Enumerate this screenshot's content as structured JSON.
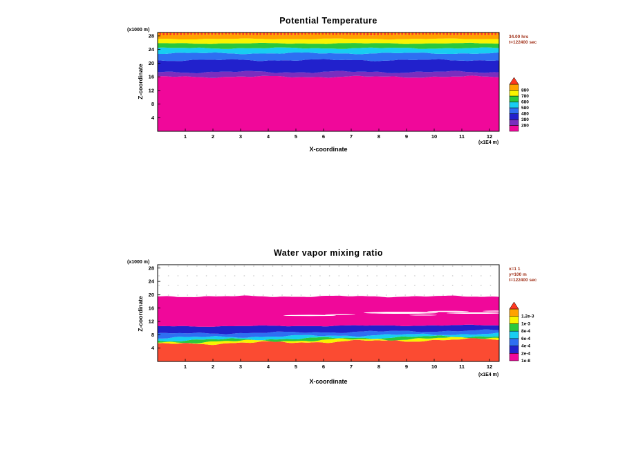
{
  "palette": {
    "magenta": "#F0089A",
    "purple": "#7A2EBE",
    "navy": "#2121CC",
    "blue": "#2E6FF2",
    "cyan": "#18CDF2",
    "green": "#2AC83C",
    "yellow": "#F8F400",
    "orange": "#FFA200",
    "red": "#FF3820",
    "redorange": "#FB4B32",
    "white": "#FFFFFF"
  },
  "chart_data": [
    {
      "type": "filled-contour",
      "title": "Potential Temperature",
      "xlabel": "X-coordinate",
      "ylabel": "Z-coordinate",
      "x_unit_label": "(x1E4 m)",
      "y_unit_label": "(x1000 m)",
      "xlim": [
        0,
        12.35
      ],
      "ylim": [
        0,
        29
      ],
      "x_ticks": [
        "1",
        "2",
        "3",
        "4",
        "5",
        "6",
        "7",
        "8",
        "9",
        "10",
        "11",
        "12"
      ],
      "y_ticks": [
        "4",
        "8",
        "12",
        "16",
        "20",
        "24",
        "28"
      ],
      "annotations": [
        "34.00 hrs",
        "t=122400 sec"
      ],
      "legend": {
        "labels": [
          "880",
          "780",
          "680",
          "580",
          "480",
          "380",
          "280"
        ],
        "colors": [
          "magenta",
          "purple",
          "navy",
          "blue",
          "cyan",
          "green",
          "yellow",
          "orange"
        ],
        "arrow": "red"
      },
      "region_colors": [
        "magenta",
        "purple",
        "navy",
        "blue",
        "cyan",
        "green",
        "yellow",
        "orange",
        "stripes"
      ],
      "edges": [
        {
          "z": 16.0,
          "amp": 0.35
        },
        {
          "z": 17.4,
          "amp": 0.4
        },
        {
          "z": 20.9,
          "amp": 0.35
        },
        {
          "z": 22.9,
          "amp": 0.3
        },
        {
          "z": 24.4,
          "amp": 0.25
        },
        {
          "z": 25.8,
          "amp": 0.2
        },
        {
          "z": 27.1,
          "amp": 0.18
        },
        {
          "z": 28.3,
          "amp": 0.14
        }
      ],
      "dots": false,
      "holes": []
    },
    {
      "type": "filled-contour",
      "title": "Water vapor mixing ratio",
      "xlabel": "X-coordinate",
      "ylabel": "Z-coordinate",
      "x_unit_label": "(x1E4 m)",
      "y_unit_label": "(x1000 m)",
      "xlim": [
        0,
        12.35
      ],
      "ylim": [
        0,
        29
      ],
      "x_ticks": [
        "1",
        "2",
        "3",
        "4",
        "5",
        "6",
        "7",
        "8",
        "9",
        "10",
        "11",
        "12"
      ],
      "y_ticks": [
        "4",
        "8",
        "12",
        "16",
        "20",
        "24",
        "28"
      ],
      "annotations": [
        "x=1 1",
        "y=100 m",
        "t=122400 sec"
      ],
      "legend": {
        "labels": [
          "1.2e-3",
          "1e-3",
          "8e-4",
          "6e-4",
          "4e-4",
          "2e-4",
          "1e-8"
        ],
        "colors": [
          "magenta",
          "navy",
          "blue",
          "cyan",
          "green",
          "yellow",
          "orange"
        ],
        "arrow": "red"
      },
      "region_colors": [
        "redorange",
        "yellow",
        "green",
        "cyan",
        "blue",
        "navy",
        "magenta",
        "none"
      ],
      "edges": [
        {
          "z": 5.2,
          "amp": 0.5,
          "slope": 0.12
        },
        {
          "z": 5.7,
          "amp": 0.5,
          "slope": 0.12
        },
        {
          "z": 6.3,
          "amp": 0.45,
          "slope": 0.11
        },
        {
          "z": 7.1,
          "amp": 0.4,
          "slope": 0.1
        },
        {
          "z": 8.3,
          "amp": 0.35,
          "slope": 0.08
        },
        {
          "z": 10.5,
          "amp": 0.2,
          "slope": 0.03
        },
        {
          "z": 19.5,
          "amp": 0.3,
          "slope": 0
        }
      ],
      "dots": true,
      "holes": [
        {
          "x": 5.5,
          "z": 13.8,
          "rx": 0.95,
          "rz": 0.18
        },
        {
          "x": 6.6,
          "z": 14.05,
          "rx": 0.55,
          "rz": 0.14
        },
        {
          "x": 8.8,
          "z": 14.6,
          "rx": 1.35,
          "rz": 0.3
        },
        {
          "x": 9.6,
          "z": 13.9,
          "rx": 0.5,
          "rz": 0.13
        },
        {
          "x": 10.5,
          "z": 15.0,
          "rx": 0.75,
          "rz": 0.18
        },
        {
          "x": 11.5,
          "z": 14.5,
          "rx": 1.05,
          "rz": 0.22
        },
        {
          "x": 12.2,
          "z": 15.1,
          "rx": 0.45,
          "rz": 0.14
        }
      ]
    }
  ]
}
